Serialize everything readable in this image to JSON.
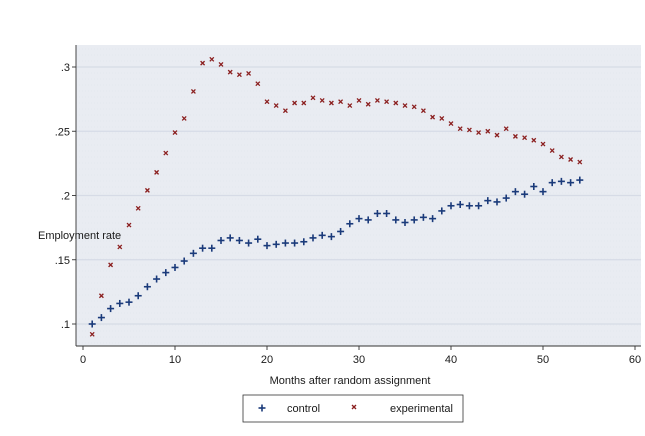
{
  "chart_data": {
    "type": "scatter",
    "xlabel": "Months after random assignment",
    "ylabel": "Employment rate",
    "xlim": [
      0,
      60
    ],
    "ylim": [
      0.087,
      0.313
    ],
    "x_ticks": [
      0,
      10,
      20,
      30,
      40,
      50,
      60
    ],
    "x_tick_labels": [
      "0",
      "10",
      "20",
      "30",
      "40",
      "50",
      "60"
    ],
    "y_ticks": [
      0.1,
      0.15,
      0.2,
      0.25,
      0.3
    ],
    "y_tick_labels": [
      ".1",
      ".15",
      ".2",
      ".25",
      ".3"
    ],
    "grid": true,
    "legend_position": "bottom",
    "x": [
      1,
      2,
      3,
      4,
      5,
      6,
      7,
      8,
      9,
      10,
      11,
      12,
      13,
      14,
      15,
      16,
      17,
      18,
      19,
      20,
      21,
      22,
      23,
      24,
      25,
      26,
      27,
      28,
      29,
      30,
      31,
      32,
      33,
      34,
      35,
      36,
      37,
      38,
      39,
      40,
      41,
      42,
      43,
      44,
      45,
      46,
      47,
      48,
      49,
      50,
      51,
      52,
      53,
      54
    ],
    "series": [
      {
        "name": "control",
        "color": "#1a3a7a",
        "marker": "plus",
        "values": [
          0.1,
          0.105,
          0.112,
          0.116,
          0.117,
          0.122,
          0.129,
          0.135,
          0.14,
          0.144,
          0.149,
          0.155,
          0.159,
          0.159,
          0.165,
          0.167,
          0.165,
          0.163,
          0.166,
          0.161,
          0.162,
          0.163,
          0.163,
          0.164,
          0.167,
          0.169,
          0.168,
          0.172,
          0.178,
          0.182,
          0.181,
          0.186,
          0.186,
          0.181,
          0.179,
          0.181,
          0.183,
          0.182,
          0.188,
          0.192,
          0.193,
          0.192,
          0.192,
          0.196,
          0.195,
          0.198,
          0.203,
          0.201,
          0.207,
          0.203,
          0.21,
          0.211,
          0.21,
          0.212
        ]
      },
      {
        "name": "experimental",
        "color": "#8b1f1f",
        "marker": "x",
        "values": [
          0.092,
          0.122,
          0.146,
          0.16,
          0.177,
          0.19,
          0.204,
          0.218,
          0.233,
          0.249,
          0.26,
          0.281,
          0.303,
          0.306,
          0.302,
          0.296,
          0.294,
          0.295,
          0.287,
          0.273,
          0.27,
          0.266,
          0.272,
          0.272,
          0.276,
          0.274,
          0.272,
          0.273,
          0.27,
          0.274,
          0.271,
          0.274,
          0.273,
          0.272,
          0.27,
          0.269,
          0.266,
          0.261,
          0.26,
          0.256,
          0.252,
          0.251,
          0.249,
          0.25,
          0.247,
          0.252,
          0.246,
          0.245,
          0.243,
          0.24,
          0.235,
          0.23,
          0.228,
          0.226
        ]
      }
    ]
  },
  "style": {
    "background": "#ffffff",
    "plot_background": "#e9ecf2",
    "grid_color": "#d6dbe6",
    "axis_color": "#333333"
  }
}
